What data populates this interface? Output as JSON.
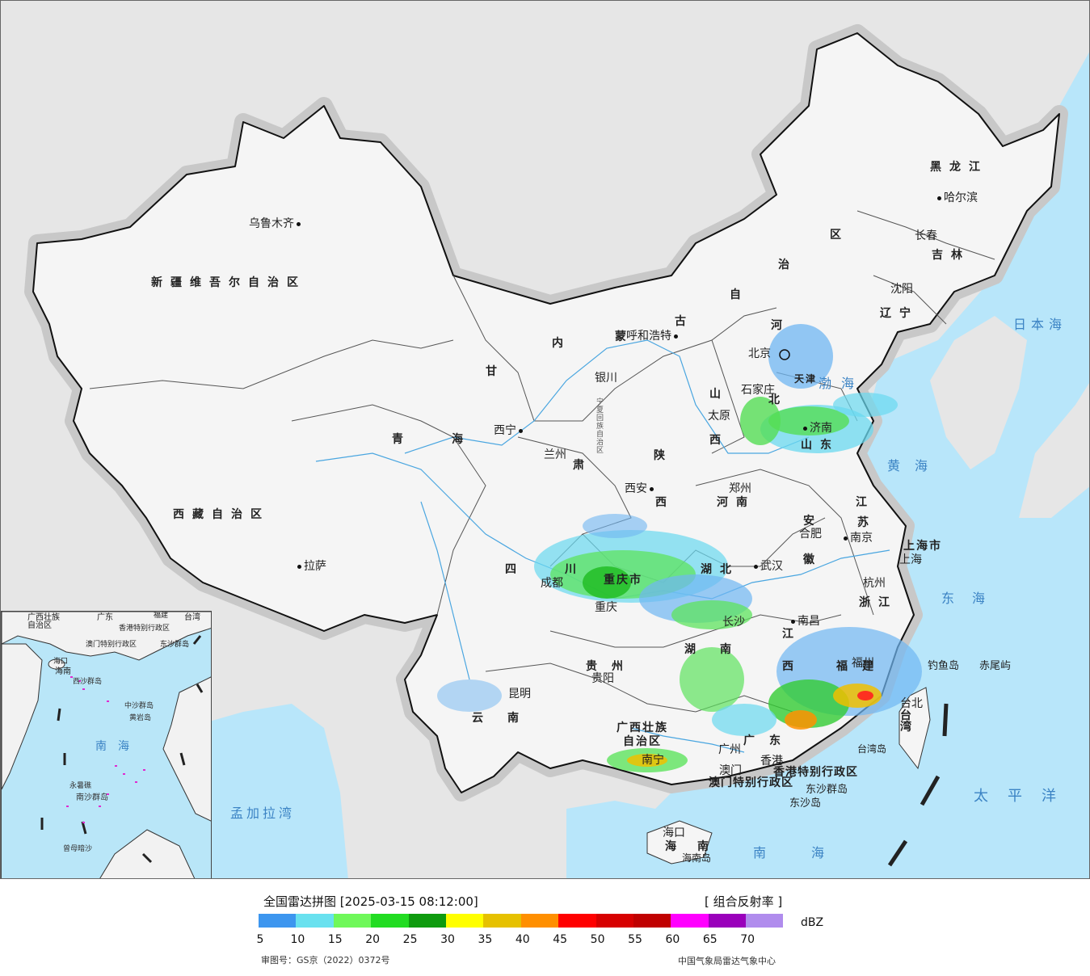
{
  "map": {
    "provinces": [
      {
        "id": "xinjiang",
        "text": "新疆维吾尔自治区"
      },
      {
        "id": "xizang",
        "text": "西藏自治区"
      },
      {
        "id": "qinghai_a",
        "text": "青"
      },
      {
        "id": "qinghai_b",
        "text": "海"
      },
      {
        "id": "gansu_a",
        "text": "甘"
      },
      {
        "id": "gansu_b",
        "text": "肃"
      },
      {
        "id": "neimenggu_1",
        "text": "内"
      },
      {
        "id": "neimenggu_2",
        "text": "蒙"
      },
      {
        "id": "neimenggu_3",
        "text": "古"
      },
      {
        "id": "neimenggu_4",
        "text": "自"
      },
      {
        "id": "neimenggu_5",
        "text": "治"
      },
      {
        "id": "neimenggu_6",
        "text": "区"
      },
      {
        "id": "heilongjiang",
        "text": "黑龙江"
      },
      {
        "id": "jilin",
        "text": "吉林"
      },
      {
        "id": "liaoning",
        "text": "辽宁"
      },
      {
        "id": "hebei_a",
        "text": "河"
      },
      {
        "id": "hebei_b",
        "text": "北"
      },
      {
        "id": "shanxi_a",
        "text": "山"
      },
      {
        "id": "shanxi_b",
        "text": "西"
      },
      {
        "id": "shandong",
        "text": "山东"
      },
      {
        "id": "shaanxi_a",
        "text": "陕"
      },
      {
        "id": "shaanxi_b",
        "text": "西"
      },
      {
        "id": "henan",
        "text": "河南"
      },
      {
        "id": "jiangsu_a",
        "text": "江"
      },
      {
        "id": "jiangsu_b",
        "text": "苏"
      },
      {
        "id": "anhui_a",
        "text": "安"
      },
      {
        "id": "anhui_b",
        "text": "徽"
      },
      {
        "id": "hubei",
        "text": "湖北"
      },
      {
        "id": "sichuan_a",
        "text": "四"
      },
      {
        "id": "sichuan_b",
        "text": "川"
      },
      {
        "id": "chongqing",
        "text": "重庆市"
      },
      {
        "id": "zhejiang",
        "text": "浙江"
      },
      {
        "id": "hunan_a",
        "text": "湖"
      },
      {
        "id": "hunan_b",
        "text": "南"
      },
      {
        "id": "jiangxi_a",
        "text": "江"
      },
      {
        "id": "jiangxi_b",
        "text": "西"
      },
      {
        "id": "fujian",
        "text": "福建"
      },
      {
        "id": "guizhou",
        "text": "贵州"
      },
      {
        "id": "yunnan",
        "text": "云南"
      },
      {
        "id": "guangxi_a",
        "text": "广西壮族"
      },
      {
        "id": "guangxi_b",
        "text": "自治区"
      },
      {
        "id": "guangdong",
        "text": "广东"
      },
      {
        "id": "hainan",
        "text": "海南"
      },
      {
        "id": "ningxia",
        "text": "宁夏回族自治区"
      },
      {
        "id": "shanghai",
        "text": "上海市"
      },
      {
        "id": "tianjin",
        "text": "天津"
      },
      {
        "id": "taiwan",
        "text": "台湾"
      },
      {
        "id": "hk",
        "text": "香港特别行政区"
      },
      {
        "id": "macau",
        "text": "澳门特别行政区"
      }
    ],
    "cities": [
      {
        "id": "urumqi",
        "text": "乌鲁木齐"
      },
      {
        "id": "lhasa",
        "text": "拉萨"
      },
      {
        "id": "xining",
        "text": "西宁"
      },
      {
        "id": "lanzhou",
        "text": "兰州"
      },
      {
        "id": "yinchuan",
        "text": "银川"
      },
      {
        "id": "hohhot",
        "text": "呼和浩特"
      },
      {
        "id": "beijing",
        "text": "北京"
      },
      {
        "id": "shijiazhuang",
        "text": "石家庄"
      },
      {
        "id": "taiyuan",
        "text": "太原"
      },
      {
        "id": "jinan",
        "text": "济南"
      },
      {
        "id": "xian",
        "text": "西安"
      },
      {
        "id": "zhengzhou",
        "text": "郑州"
      },
      {
        "id": "hefei",
        "text": "合肥"
      },
      {
        "id": "nanjing",
        "text": "南京"
      },
      {
        "id": "shanghai_c",
        "text": "上海"
      },
      {
        "id": "hangzhou",
        "text": "杭州"
      },
      {
        "id": "wuhan",
        "text": "武汉"
      },
      {
        "id": "chengdu",
        "text": "成都"
      },
      {
        "id": "chongqing_c",
        "text": "重庆"
      },
      {
        "id": "changsha",
        "text": "长沙"
      },
      {
        "id": "nanchang",
        "text": "南昌"
      },
      {
        "id": "fuzhou",
        "text": "福州"
      },
      {
        "id": "guiyang",
        "text": "贵阳"
      },
      {
        "id": "kunming",
        "text": "昆明"
      },
      {
        "id": "nanning",
        "text": "南宁"
      },
      {
        "id": "guangzhou",
        "text": "广州"
      },
      {
        "id": "hongkong",
        "text": "香港"
      },
      {
        "id": "macao",
        "text": "澳门"
      },
      {
        "id": "haikou",
        "text": "海口"
      },
      {
        "id": "taipei",
        "text": "台北"
      },
      {
        "id": "shenyang",
        "text": "沈阳"
      },
      {
        "id": "changchun",
        "text": "长春"
      },
      {
        "id": "harbin",
        "text": "哈尔滨"
      }
    ],
    "seas": [
      {
        "id": "bohai",
        "text": "渤海"
      },
      {
        "id": "huanghai",
        "text": "黄海"
      },
      {
        "id": "donghai",
        "text": "东海"
      },
      {
        "id": "nanhai",
        "text": "南海"
      },
      {
        "id": "taipingyang",
        "text": "太平洋"
      },
      {
        "id": "ribenhai",
        "text": "日本海"
      },
      {
        "id": "mengjialawan",
        "text": "孟加拉湾"
      }
    ],
    "islands": [
      {
        "id": "diaoyu",
        "text": "钓鱼岛"
      },
      {
        "id": "chiwei",
        "text": "赤尾屿"
      },
      {
        "id": "taiwandao",
        "text": "台湾岛"
      },
      {
        "id": "dongsha_qd",
        "text": "东沙群岛"
      },
      {
        "id": "dongsha_d",
        "text": "东沙岛"
      },
      {
        "id": "hainandao",
        "text": "海南岛"
      }
    ],
    "inset": {
      "labels": [
        "广西壮族",
        "自治区",
        "广东",
        "福建",
        "台湾",
        "香港特别行政区",
        "澳门特别行政区",
        "东沙群岛",
        "海口",
        "海南",
        "西沙群岛",
        "中沙群岛",
        "黄岩岛",
        "南海",
        "永暑礁",
        "南沙群岛",
        "曾母暗沙"
      ]
    }
  },
  "legend": {
    "title": "全国雷达拼图 [2025-03-15 08:12:00]",
    "product": "[ 组合反射率 ]",
    "unit": "dBZ",
    "colors": [
      "#3d96ef",
      "#69e1ef",
      "#6ff85a",
      "#22dc22",
      "#0f9b0f",
      "#ffff00",
      "#e6c100",
      "#ff8f00",
      "#ff0000",
      "#d70000",
      "#c00000",
      "#ff00ff",
      "#9a00bb",
      "#b08ced"
    ],
    "ticks": [
      "5",
      "10",
      "15",
      "20",
      "25",
      "30",
      "35",
      "40",
      "45",
      "50",
      "55",
      "60",
      "65",
      "70"
    ],
    "footer_left": "审图号：GS京（2022）0372号",
    "footer_right": "中国气象局雷达气象中心"
  }
}
